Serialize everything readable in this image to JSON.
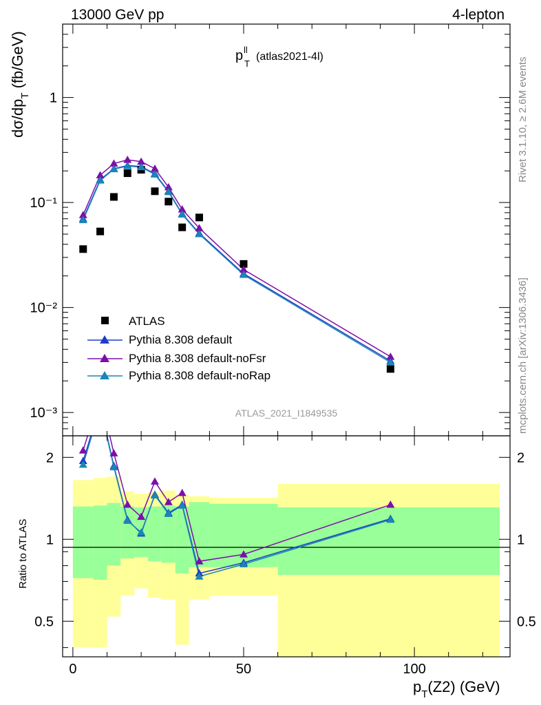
{
  "header": {
    "left": "13000 GeV pp",
    "right": "4-lepton"
  },
  "title": {
    "main": "p",
    "sup": "ll",
    "sub": "T",
    "extra": "(atlas2021-4l)"
  },
  "side_text": {
    "top": "Rivet 3.1.10, ≥ 2.6M events",
    "bottom": "mcplots.cern.ch [arXiv:1306.3436]"
  },
  "watermark": "ATLAS_2021_I1849535",
  "axes": {
    "ylabel_main": "dσ/dp",
    "ylabel_main_sub": "T",
    "ylabel_main_unit": "(fb/GeV)",
    "ylabel_ratio": "Ratio to ATLAS",
    "xlabel": "p",
    "xlabel_sub": "T",
    "xlabel_rest": "(Z2) (GeV)"
  },
  "colors": {
    "data": "#000000",
    "default": "#1f3cc9",
    "noFsr": "#7b0fa8",
    "noRap": "#1a86b5",
    "band_inner": "#99ff99",
    "band_outer": "#ffff99"
  },
  "chart_data": [
    {
      "type": "scatter",
      "panel": "main",
      "xlim": [
        -3,
        128
      ],
      "ylim": [
        0.0006,
        5.0
      ],
      "yscale": "log",
      "yticks": [
        {
          "value": 0.001,
          "label": "10⁻³"
        },
        {
          "value": 0.01,
          "label": "10⁻²"
        },
        {
          "value": 0.1,
          "label": "10⁻¹"
        },
        {
          "value": 1,
          "label": "1"
        }
      ],
      "legend_position": "bottom-left",
      "series": [
        {
          "name": "ATLAS",
          "marker": "square",
          "color": "#000000",
          "x": [
            3,
            8,
            12,
            16,
            20,
            24,
            28,
            32,
            37,
            50,
            93
          ],
          "y": [
            0.036,
            0.053,
            0.113,
            0.19,
            0.205,
            0.128,
            0.102,
            0.058,
            0.072,
            0.026,
            0.0026
          ]
        },
        {
          "name": "Pythia 8.308 default",
          "marker": "triangle",
          "color": "#1f3cc9",
          "x": [
            3,
            8,
            12,
            16,
            20,
            24,
            28,
            32,
            37,
            50,
            93
          ],
          "y": [
            0.07,
            0.165,
            0.21,
            0.225,
            0.22,
            0.188,
            0.128,
            0.078,
            0.051,
            0.021,
            0.0031
          ]
        },
        {
          "name": "Pythia 8.308 default-noFsr",
          "marker": "triangle",
          "color": "#7b0fa8",
          "x": [
            3,
            8,
            12,
            16,
            20,
            24,
            28,
            32,
            37,
            50,
            93
          ],
          "y": [
            0.076,
            0.182,
            0.235,
            0.255,
            0.245,
            0.21,
            0.14,
            0.086,
            0.057,
            0.023,
            0.0034
          ]
        },
        {
          "name": "Pythia 8.308 default-noRap",
          "marker": "triangle",
          "color": "#1a86b5",
          "x": [
            3,
            8,
            12,
            16,
            20,
            24,
            28,
            32,
            37,
            50,
            93
          ],
          "y": [
            0.068,
            0.162,
            0.208,
            0.222,
            0.217,
            0.185,
            0.126,
            0.077,
            0.05,
            0.0205,
            0.003
          ]
        }
      ]
    },
    {
      "type": "line",
      "panel": "ratio",
      "xlim": [
        -3,
        128
      ],
      "ylim": [
        0.37,
        2.4
      ],
      "yscale": "log",
      "yticks": [
        {
          "value": 0.5,
          "label": "0.5"
        },
        {
          "value": 1,
          "label": "1"
        },
        {
          "value": 2,
          "label": "2"
        }
      ],
      "xticks": [
        {
          "value": 0,
          "label": "0"
        },
        {
          "value": 50,
          "label": "50"
        },
        {
          "value": 100,
          "label": "100"
        }
      ],
      "bands": {
        "edges": [
          0,
          6,
          10,
          14,
          18,
          22,
          26,
          30,
          34,
          40,
          60,
          125
        ],
        "inner_low": [
          0.72,
          0.71,
          0.8,
          0.85,
          0.86,
          0.83,
          0.82,
          0.75,
          0.79,
          0.79,
          0.74
        ],
        "inner_high": [
          1.32,
          1.33,
          1.36,
          1.32,
          1.31,
          1.32,
          1.33,
          1.32,
          1.37,
          1.35,
          1.31
        ],
        "outer_low": [
          0.4,
          0.4,
          0.52,
          0.62,
          0.66,
          0.61,
          0.6,
          0.41,
          0.6,
          0.62,
          0.37
        ],
        "outer_high": [
          1.65,
          1.68,
          1.7,
          1.5,
          1.47,
          1.49,
          1.51,
          1.46,
          1.44,
          1.42,
          1.6
        ]
      },
      "series": [
        {
          "name": "Pythia 8.308 default",
          "color": "#1f3cc9",
          "x": [
            3,
            8,
            12,
            16,
            20,
            24,
            28,
            32,
            37,
            50,
            93
          ],
          "y": [
            1.94,
            3.1,
            1.86,
            1.18,
            1.05,
            1.46,
            1.25,
            1.34,
            0.75,
            0.82,
            1.19
          ]
        },
        {
          "name": "Pythia 8.308 default-noFsr",
          "color": "#7b0fa8",
          "x": [
            3,
            8,
            12,
            16,
            20,
            24,
            28,
            32,
            37,
            50,
            93
          ],
          "y": [
            2.12,
            3.4,
            2.07,
            1.34,
            1.21,
            1.63,
            1.37,
            1.48,
            0.83,
            0.88,
            1.34
          ]
        },
        {
          "name": "Pythia 8.308 default-noRap",
          "color": "#1a86b5",
          "x": [
            3,
            8,
            12,
            16,
            20,
            24,
            28,
            32,
            37,
            50,
            93
          ],
          "y": [
            1.88,
            3.05,
            1.84,
            1.17,
            1.06,
            1.45,
            1.24,
            1.33,
            0.73,
            0.81,
            1.18
          ]
        }
      ]
    }
  ]
}
